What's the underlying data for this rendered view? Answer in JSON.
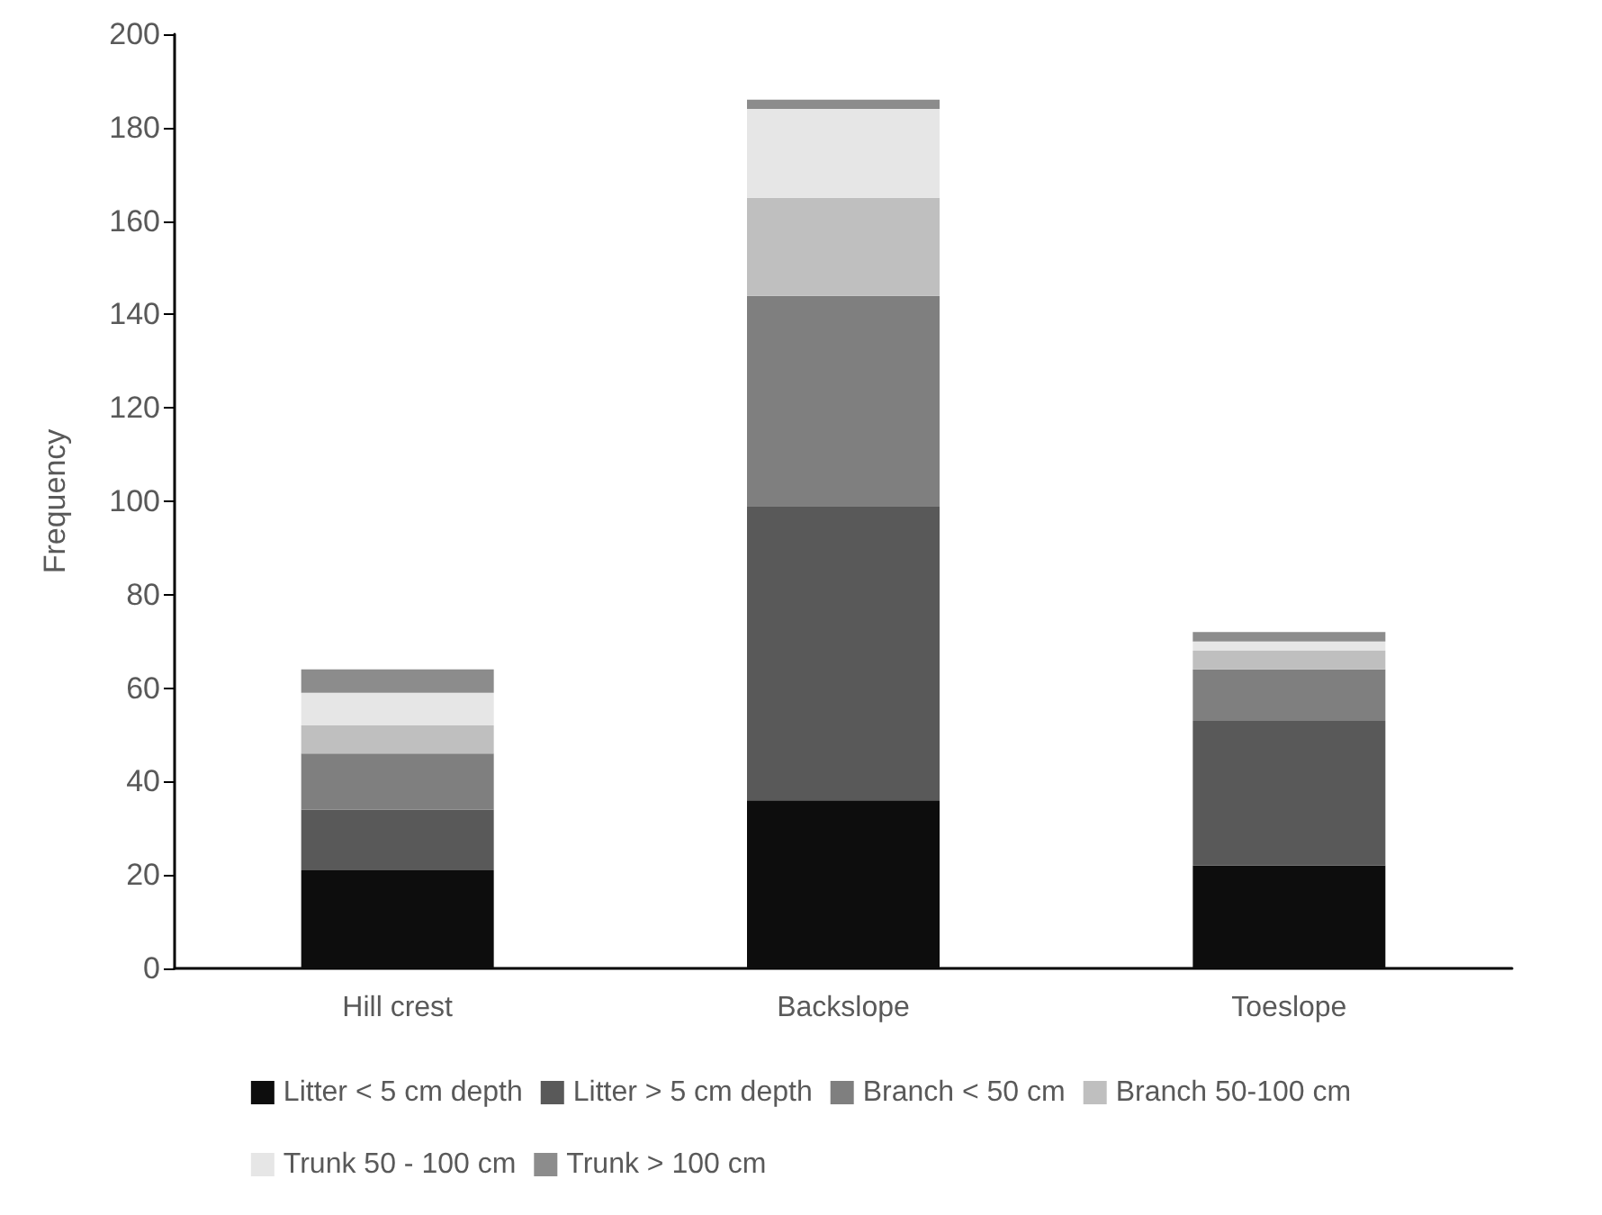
{
  "chart_data": {
    "type": "bar",
    "stacked": true,
    "ylabel": "Frequency",
    "categories": [
      "Hill crest",
      "Backslope",
      "Toeslope"
    ],
    "ylim": [
      0,
      200
    ],
    "yticks": [
      0,
      20,
      40,
      60,
      80,
      100,
      120,
      140,
      160,
      180,
      200
    ],
    "grid": false,
    "legend": "bottom",
    "series": [
      {
        "name": "Litter < 5 cm depth",
        "color": "#0d0d0d",
        "values": [
          21,
          36,
          22
        ]
      },
      {
        "name": "Litter > 5 cm depth",
        "color": "#595959",
        "values": [
          13,
          63,
          31
        ]
      },
      {
        "name": "Branch < 50 cm",
        "color": "#7f7f7f",
        "values": [
          12,
          45,
          11
        ]
      },
      {
        "name": "Branch 50-100 cm",
        "color": "#bfbfbf",
        "values": [
          6,
          21,
          4
        ]
      },
      {
        "name": "Trunk 50 - 100 cm",
        "color": "#e6e6e6",
        "values": [
          7,
          19,
          2
        ]
      },
      {
        "name": "Trunk > 100 cm",
        "color": "#8c8c8c",
        "values": [
          5,
          2,
          2
        ]
      }
    ]
  }
}
